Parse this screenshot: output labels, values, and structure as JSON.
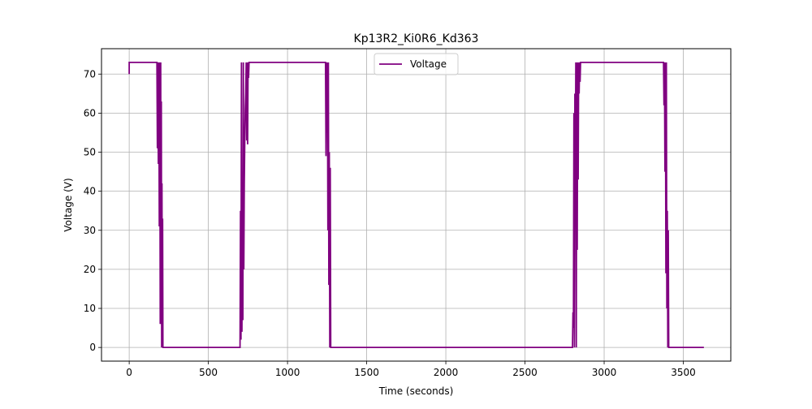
{
  "chart_data": {
    "type": "line",
    "title": "Kp13R2_Ki0R6_Kd363",
    "xlabel": "Time (seconds)",
    "ylabel": "Voltage (V)",
    "xlim": [
      -175,
      3800
    ],
    "ylim": [
      -3.5,
      76.5
    ],
    "xticks": [
      0,
      500,
      1000,
      1500,
      2000,
      2500,
      3000,
      3500
    ],
    "yticks": [
      0,
      10,
      20,
      30,
      40,
      50,
      60,
      70
    ],
    "xtick_labels": [
      "0",
      "500",
      "1000",
      "1500",
      "2000",
      "2500",
      "3000",
      "3500"
    ],
    "ytick_labels": [
      "0",
      "10",
      "20",
      "30",
      "40",
      "50",
      "60",
      "70"
    ],
    "grid": true,
    "legend": {
      "position": "top-center",
      "entries": [
        "Voltage"
      ]
    },
    "colors": {
      "Voltage": "#800080",
      "grid": "#b0b0b0"
    },
    "series": [
      {
        "name": "Voltage",
        "points": [
          [
            0,
            70
          ],
          [
            0,
            73
          ],
          [
            175,
            73
          ],
          [
            178,
            51
          ],
          [
            181,
            73
          ],
          [
            184,
            47
          ],
          [
            187,
            73
          ],
          [
            190,
            31
          ],
          [
            193,
            73
          ],
          [
            196,
            6
          ],
          [
            199,
            73
          ],
          [
            201,
            10
          ],
          [
            203,
            63
          ],
          [
            205,
            0
          ],
          [
            207,
            42
          ],
          [
            209,
            0
          ],
          [
            211,
            33
          ],
          [
            213,
            0
          ],
          [
            220,
            0
          ],
          [
            700,
            0
          ],
          [
            703,
            35
          ],
          [
            706,
            2
          ],
          [
            709,
            73
          ],
          [
            712,
            4
          ],
          [
            715,
            35
          ],
          [
            718,
            7
          ],
          [
            721,
            73
          ],
          [
            724,
            20
          ],
          [
            727,
            42
          ],
          [
            730,
            53
          ],
          [
            733,
            61
          ],
          [
            736,
            65
          ],
          [
            739,
            73
          ],
          [
            742,
            53
          ],
          [
            745,
            73
          ],
          [
            748,
            52
          ],
          [
            751,
            73
          ],
          [
            754,
            69
          ],
          [
            757,
            73
          ],
          [
            1240,
            73
          ],
          [
            1243,
            49
          ],
          [
            1246,
            73
          ],
          [
            1249,
            55
          ],
          [
            1252,
            73
          ],
          [
            1255,
            30
          ],
          [
            1258,
            73
          ],
          [
            1261,
            16
          ],
          [
            1264,
            50
          ],
          [
            1267,
            0
          ],
          [
            1270,
            46
          ],
          [
            1273,
            0
          ],
          [
            1280,
            0
          ],
          [
            2800,
            0
          ],
          [
            2803,
            9
          ],
          [
            2806,
            5
          ],
          [
            2809,
            60
          ],
          [
            2812,
            0
          ],
          [
            2815,
            65
          ],
          [
            2818,
            45
          ],
          [
            2821,
            73
          ],
          [
            2824,
            0
          ],
          [
            2827,
            73
          ],
          [
            2830,
            25
          ],
          [
            2833,
            73
          ],
          [
            2836,
            43
          ],
          [
            2839,
            73
          ],
          [
            2842,
            65
          ],
          [
            2845,
            73
          ],
          [
            2848,
            68
          ],
          [
            2851,
            73
          ],
          [
            3375,
            73
          ],
          [
            3378,
            62
          ],
          [
            3381,
            73
          ],
          [
            3384,
            45
          ],
          [
            3387,
            73
          ],
          [
            3390,
            19
          ],
          [
            3393,
            73
          ],
          [
            3396,
            10
          ],
          [
            3399,
            35
          ],
          [
            3402,
            0
          ],
          [
            3405,
            30
          ],
          [
            3408,
            0
          ],
          [
            3630,
            0
          ]
        ]
      }
    ]
  }
}
